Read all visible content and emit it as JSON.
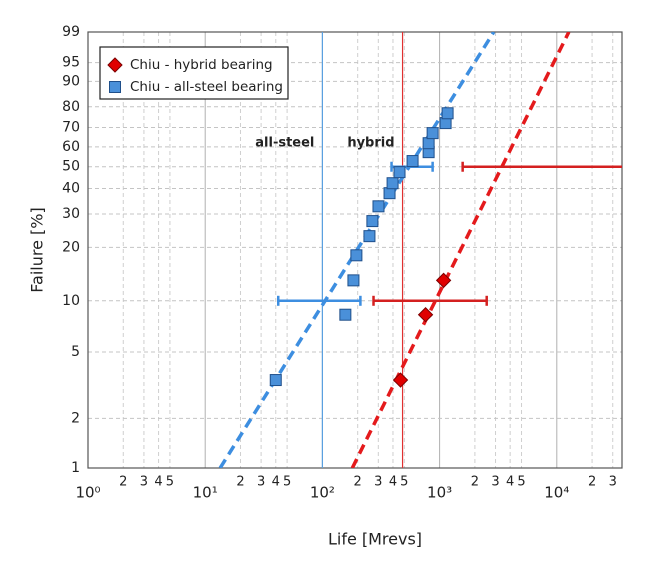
{
  "chart_data": {
    "type": "scatter",
    "x_scale": "log",
    "y_scale": "weibull",
    "xlabel": "Life  [Mrevs]",
    "ylabel": "Failure  [%]",
    "xlim": [
      1,
      36000
    ],
    "ylim": [
      1,
      99
    ],
    "xticks": [
      {
        "value": 1,
        "label": "10⁰"
      },
      2,
      3,
      4,
      5,
      {
        "value": 10,
        "label": "10¹"
      },
      {
        "value": 20,
        "label": "2"
      },
      {
        "value": 30,
        "label": "3"
      },
      {
        "value": 40,
        "label": "4"
      },
      {
        "value": 50,
        "label": "5"
      },
      {
        "value": 100,
        "label": "10²"
      },
      {
        "value": 200,
        "label": "2"
      },
      {
        "value": 300,
        "label": "3"
      },
      {
        "value": 400,
        "label": "4"
      },
      {
        "value": 500,
        "label": "5"
      },
      {
        "value": 1000,
        "label": "10³"
      },
      {
        "value": 2000,
        "label": "2"
      },
      {
        "value": 3000,
        "label": "3"
      },
      {
        "value": 4000,
        "label": "4"
      },
      {
        "value": 5000,
        "label": "5"
      },
      {
        "value": 10000,
        "label": "10⁴"
      },
      {
        "value": 20000,
        "label": "2"
      },
      {
        "value": 30000,
        "label": "3"
      }
    ],
    "yticks": [
      1,
      2,
      5,
      10,
      20,
      30,
      40,
      50,
      60,
      70,
      80,
      90,
      95,
      99
    ],
    "grid": true,
    "legend": "upper left",
    "series": [
      {
        "name": "Chiu - hybrid bearing",
        "color": "#e00000",
        "marker": "diamond",
        "x": [
          464,
          759,
          1082
        ],
        "values": [
          3.4,
          8.3,
          13.1
        ]
      },
      {
        "name": "Chiu - all-steel bearing",
        "color": "#4a90d9",
        "marker": "square",
        "x": [
          40,
          157,
          184,
          195,
          252,
          267,
          301,
          374,
          397,
          455,
          588,
          806,
          806,
          872,
          1125,
          1170
        ],
        "values": [
          3.4,
          8.3,
          13.1,
          18.1,
          23.0,
          27.6,
          32.8,
          38.0,
          42.3,
          47.4,
          52.8,
          57.3,
          61.9,
          67.1,
          72.2,
          77.0
        ]
      }
    ],
    "fits": [
      {
        "color": "#e41a1c",
        "x": [
          180,
          12670
        ],
        "values": [
          1,
          99
        ]
      },
      {
        "color": "#3d8ee0",
        "x": [
          13.4,
          2900
        ],
        "values": [
          1,
          99
        ]
      }
    ],
    "reference_lines": [
      {
        "x": 100,
        "color": "#5aa0e0",
        "label": "all-steel"
      },
      {
        "x": 483,
        "color": "#e03030",
        "label": "hybrid"
      }
    ],
    "intervals": [
      {
        "color": "#3d8ee0",
        "y": 10,
        "x": [
          42,
          211
        ]
      },
      {
        "color": "#3d8ee0",
        "y": 50,
        "x": [
          389,
          872
        ]
      },
      {
        "color": "#d42020",
        "y": 10,
        "x": [
          273,
          2523
        ]
      },
      {
        "color": "#d42020",
        "y": 50,
        "x": [
          1573,
          36000
        ]
      }
    ]
  }
}
